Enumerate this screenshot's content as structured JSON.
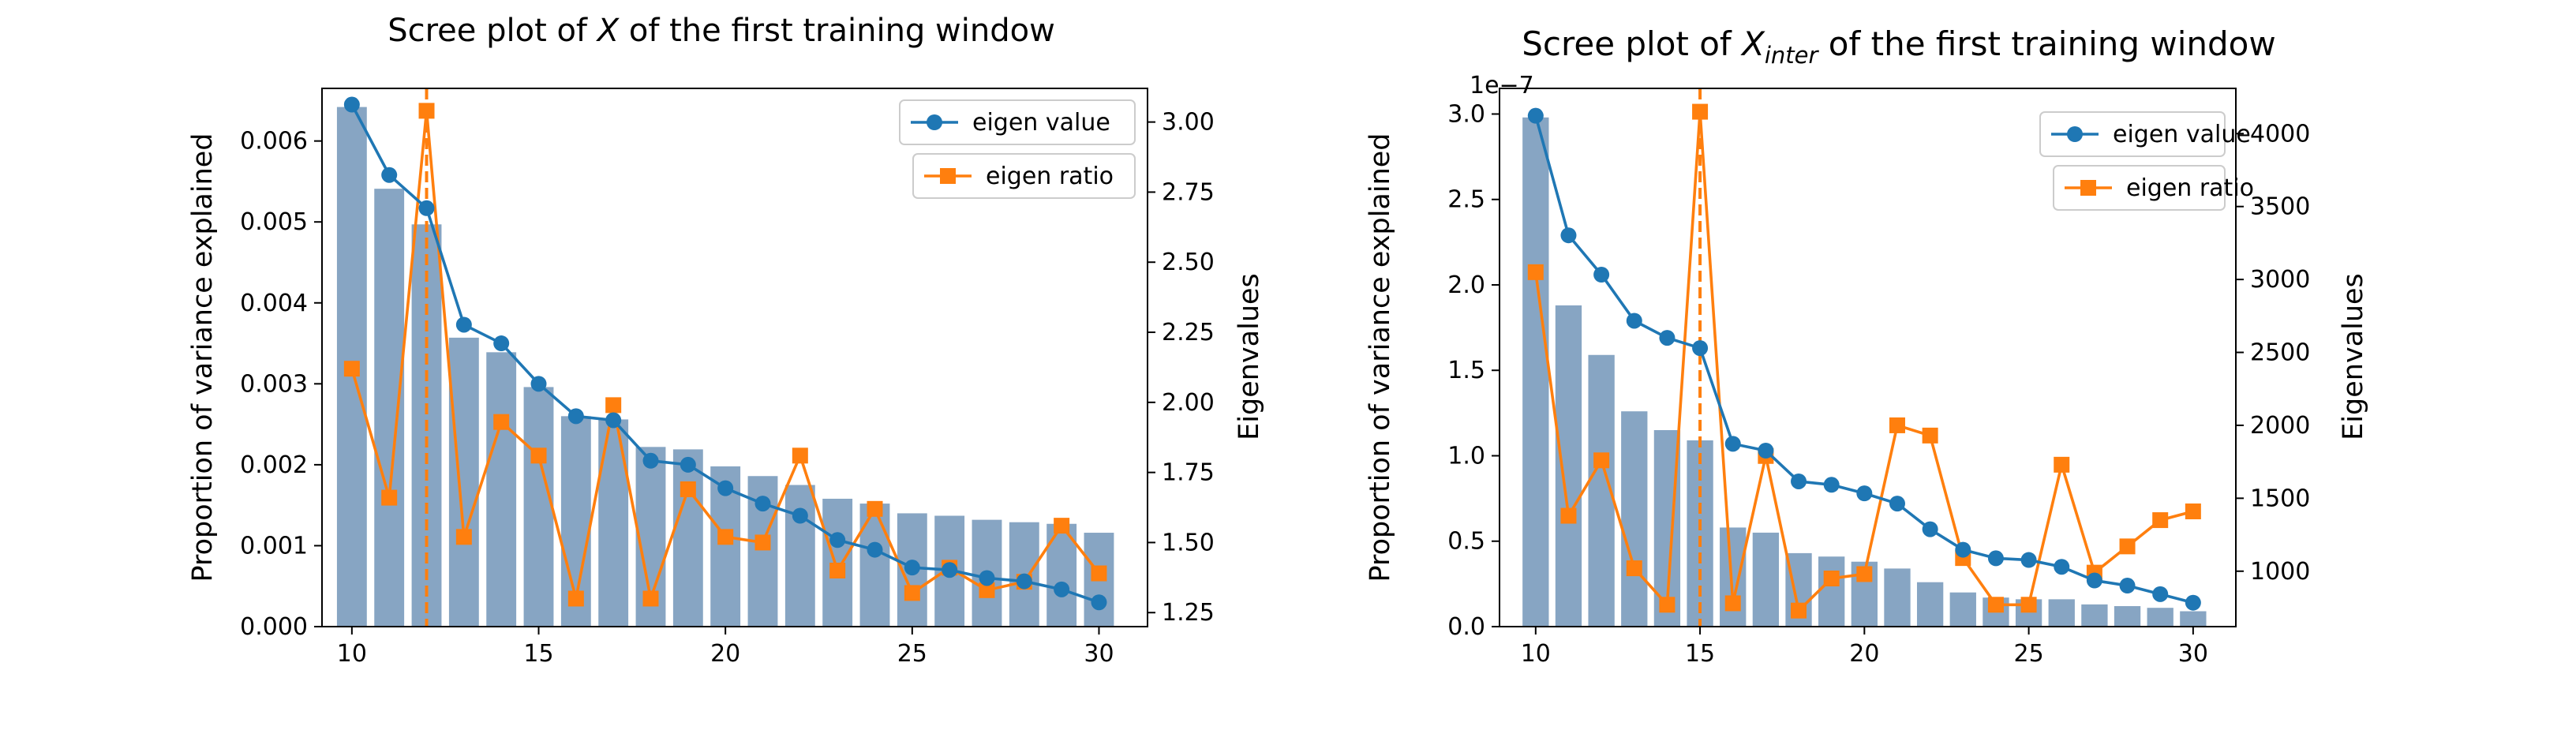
{
  "figure": {
    "panels": [
      {
        "title_pre": "Scree plot of ",
        "title_sym": "X",
        "title_sub": "",
        "title_post": " of the first training window",
        "offset_text": ""
      },
      {
        "title_pre": "Scree plot of ",
        "title_sym": "X",
        "title_sub": "inter",
        "title_post": " of the first training window",
        "offset_text": "1e−7"
      }
    ]
  },
  "chart_data": [
    {
      "type": "bar",
      "title": "Scree plot of X of the first training window",
      "xlabel": "",
      "ylabel": "Proportion of variance explained",
      "ylabel_right": "Eigenvalues",
      "x": [
        10,
        11,
        12,
        13,
        14,
        15,
        16,
        17,
        18,
        19,
        20,
        21,
        22,
        23,
        24,
        25,
        26,
        27,
        28,
        29,
        30
      ],
      "xlim": [
        9.2,
        31.3
      ],
      "xticks": [
        10,
        15,
        20,
        25,
        30
      ],
      "ylim": [
        0,
        0.00665
      ],
      "yticks": [
        0,
        0.001,
        0.002,
        0.003,
        0.004,
        0.005,
        0.006
      ],
      "ytick_labels": [
        "0.000",
        "0.001",
        "0.002",
        "0.003",
        "0.004",
        "0.005",
        "0.006"
      ],
      "ylim_right": [
        1.2,
        3.12
      ],
      "yticks_right": [
        1.25,
        1.5,
        1.75,
        2.0,
        2.25,
        2.5,
        2.75,
        3.0
      ],
      "ytick_labels_right": [
        "1.25",
        "1.50",
        "1.75",
        "2.00",
        "2.25",
        "2.50",
        "2.75",
        "3.00"
      ],
      "vline_x": 12,
      "series": [
        {
          "name": "proportion of variance explained",
          "kind": "bar",
          "axis": "left",
          "color": "#87a5c3",
          "values": [
            0.00642,
            0.00541,
            0.00497,
            0.00357,
            0.00339,
            0.00296,
            0.0026,
            0.00256,
            0.00222,
            0.00219,
            0.00198,
            0.00186,
            0.00175,
            0.00158,
            0.00152,
            0.0014,
            0.00137,
            0.00132,
            0.00129,
            0.00127,
            0.00116
          ]
        },
        {
          "name": "eigen value",
          "kind": "line",
          "axis": "left",
          "marker": "circle",
          "color": "#1f77b4",
          "values": [
            0.00645,
            0.00558,
            0.00517,
            0.00373,
            0.0035,
            0.003,
            0.0026,
            0.00255,
            0.00205,
            0.002,
            0.00171,
            0.00152,
            0.00137,
            0.00107,
            0.00095,
            0.00073,
            0.0007,
            0.0006,
            0.00056,
            0.00046,
            0.0003
          ]
        },
        {
          "name": "eigen ratio",
          "kind": "line",
          "axis": "right",
          "marker": "square",
          "color": "#ff7f0e",
          "values": [
            2.12,
            1.66,
            3.04,
            1.52,
            1.93,
            1.81,
            1.3,
            1.99,
            1.3,
            1.69,
            1.52,
            1.5,
            1.81,
            1.4,
            1.62,
            1.32,
            1.41,
            1.33,
            1.36,
            1.56,
            1.39
          ]
        }
      ],
      "legend": {
        "placement": "top-right",
        "entries": [
          "eigen value",
          "eigen ratio"
        ]
      }
    },
    {
      "type": "bar",
      "title": "Scree plot of X_inter of the first training window",
      "xlabel": "",
      "ylabel": "Proportion of variance explained",
      "ylabel_right": "Eigenvalues",
      "y_scale_note": "1e−7",
      "x": [
        10,
        11,
        12,
        13,
        14,
        15,
        16,
        17,
        18,
        19,
        20,
        21,
        22,
        23,
        24,
        25,
        26,
        27,
        28,
        29,
        30
      ],
      "xlim": [
        8.9,
        31.3
      ],
      "xticks": [
        10,
        15,
        20,
        25,
        30
      ],
      "ylim": [
        0,
        3.15
      ],
      "yticks": [
        0,
        0.5,
        1.0,
        1.5,
        2.0,
        2.5,
        3.0
      ],
      "ytick_labels": [
        "0.0",
        "0.5",
        "1.0",
        "1.5",
        "2.0",
        "2.5",
        "3.0"
      ],
      "ylim_right": [
        620,
        4310
      ],
      "yticks_right": [
        1000,
        1500,
        2000,
        2500,
        3000,
        3500,
        4000
      ],
      "ytick_labels_right": [
        "1000",
        "1500",
        "2000",
        "2500",
        "3000",
        "3500",
        "4000"
      ],
      "vline_x": 15,
      "series": [
        {
          "name": "proportion of variance explained",
          "kind": "bar",
          "axis": "left",
          "color": "#87a5c3",
          "values": [
            2.98,
            1.88,
            1.59,
            1.26,
            1.15,
            1.09,
            0.58,
            0.55,
            0.43,
            0.41,
            0.38,
            0.34,
            0.26,
            0.2,
            0.17,
            0.16,
            0.16,
            0.13,
            0.12,
            0.11,
            0.09
          ]
        },
        {
          "name": "eigen value",
          "kind": "line",
          "axis": "left",
          "marker": "circle",
          "color": "#1f77b4",
          "values": [
            2.99,
            2.29,
            2.06,
            1.79,
            1.69,
            1.63,
            1.07,
            1.03,
            0.85,
            0.83,
            0.78,
            0.72,
            0.57,
            0.45,
            0.4,
            0.39,
            0.35,
            0.27,
            0.24,
            0.19,
            0.14
          ]
        },
        {
          "name": "eigen ratio",
          "kind": "line",
          "axis": "right",
          "marker": "square",
          "color": "#ff7f0e",
          "values": [
            3050,
            1380,
            1760,
            1020,
            770,
            4150,
            780,
            1790,
            730,
            950,
            980,
            2000,
            1930,
            1090,
            770,
            770,
            1730,
            990,
            1170,
            1350,
            1410
          ]
        }
      ],
      "legend": {
        "placement": "top-right",
        "entries": [
          "eigen value",
          "eigen ratio"
        ]
      }
    }
  ]
}
